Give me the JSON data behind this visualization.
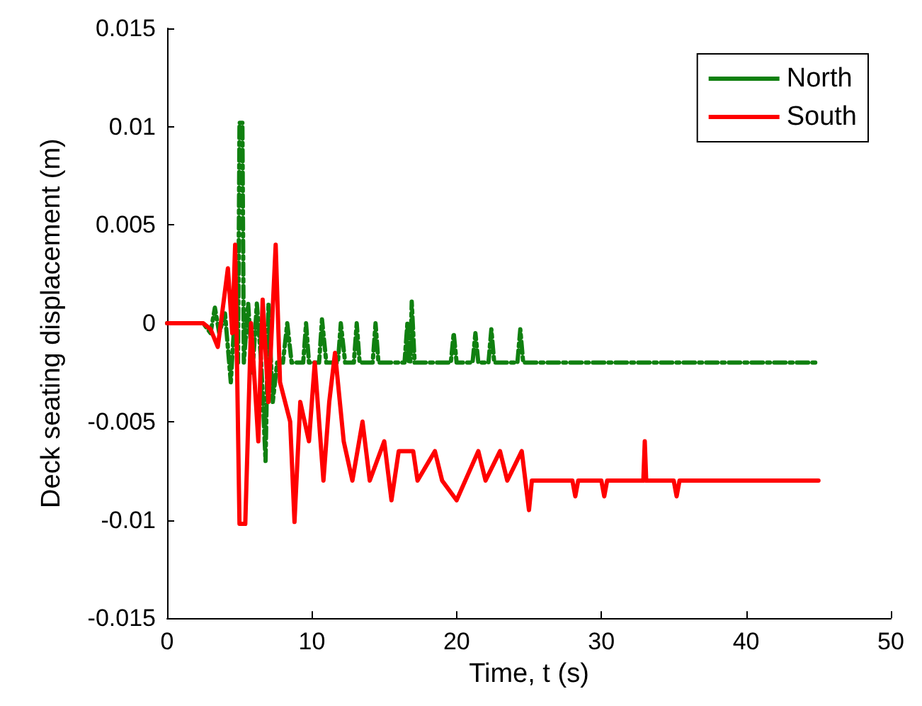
{
  "chart_data": {
    "type": "line",
    "xlabel": "Time, t (s)",
    "ylabel": "Deck seating displacement (m)",
    "xlim": [
      0,
      50
    ],
    "xticks": [
      0,
      10,
      20,
      30,
      40,
      50
    ],
    "ylim": [
      -0.015,
      0.015
    ],
    "yticks": [
      -0.015,
      -0.01,
      -0.005,
      0,
      0.005,
      0.01,
      0.015
    ],
    "grid": false,
    "legend": "top right",
    "marker": "none",
    "series": [
      {
        "name": "North",
        "color": "#108010",
        "line_style": "dashed",
        "x": [
          0,
          2.5,
          3,
          3.3,
          3.6,
          4,
          4.4,
          4.7,
          4.9,
          5,
          5.2,
          5.3,
          5.6,
          5.9,
          6.2,
          6.5,
          6.8,
          7,
          7.3,
          7.6,
          8,
          8.3,
          8.6,
          9.4,
          9.6,
          9.8,
          10.5,
          10.7,
          11,
          11.8,
          12,
          12.3,
          12.9,
          13.1,
          13.3,
          14.2,
          14.4,
          14.6,
          16.4,
          16.6,
          16.7,
          16.8,
          16.9,
          17.1,
          19.6,
          19.8,
          20,
          21.1,
          21.3,
          21.5,
          22.2,
          22.4,
          22.6,
          24.2,
          24.4,
          24.6,
          45
        ],
        "values": [
          0,
          0,
          -0.0005,
          0.0008,
          -0.0005,
          0.0005,
          -0.003,
          0.0008,
          -0.002,
          0.0102,
          0.0102,
          -0.002,
          0.001,
          -0.0025,
          0.001,
          -0.002,
          -0.007,
          0.001,
          -0.004,
          -0.002,
          -0.002,
          0,
          -0.002,
          -0.002,
          0,
          -0.002,
          -0.002,
          0.0002,
          -0.002,
          -0.002,
          0,
          -0.002,
          -0.002,
          0,
          -0.002,
          -0.002,
          0,
          -0.002,
          -0.002,
          0,
          -0.002,
          -0.002,
          0.0011,
          -0.002,
          -0.002,
          -0.0005,
          -0.002,
          -0.002,
          -0.0005,
          -0.002,
          -0.002,
          -0.0003,
          -0.002,
          -0.002,
          -0.0003,
          -0.002,
          -0.002
        ]
      },
      {
        "name": "South",
        "color": "#ff0000",
        "line_style": "solid",
        "x": [
          0,
          2.5,
          3,
          3.5,
          3.8,
          4.2,
          4.5,
          4.7,
          5,
          5.4,
          5.8,
          6.3,
          6.6,
          7,
          7.5,
          7.8,
          8.5,
          8.8,
          9.2,
          9.8,
          10.2,
          10.8,
          11.2,
          11.6,
          12.2,
          12.8,
          13.5,
          14,
          15,
          15.5,
          16,
          17,
          17.3,
          18.5,
          19,
          20,
          21.5,
          22,
          23,
          23.5,
          24.5,
          25,
          25.2,
          26,
          28,
          28.2,
          28.4,
          30,
          30.2,
          30.4,
          32.9,
          33,
          33.1,
          35,
          35.2,
          35.4,
          45
        ],
        "values": [
          0,
          0,
          -0.0003,
          -0.0012,
          0.0005,
          0.0028,
          -0.0005,
          0.004,
          -0.0102,
          -0.0102,
          0,
          -0.006,
          0.0012,
          -0.004,
          0.004,
          -0.003,
          -0.005,
          -0.0101,
          -0.004,
          -0.006,
          -0.002,
          -0.008,
          -0.004,
          -0.0015,
          -0.006,
          -0.008,
          -0.005,
          -0.008,
          -0.006,
          -0.009,
          -0.0065,
          -0.0065,
          -0.008,
          -0.0065,
          -0.008,
          -0.009,
          -0.0065,
          -0.008,
          -0.0065,
          -0.008,
          -0.0065,
          -0.0095,
          -0.008,
          -0.008,
          -0.008,
          -0.0088,
          -0.008,
          -0.008,
          -0.0088,
          -0.008,
          -0.008,
          -0.006,
          -0.008,
          -0.008,
          -0.0088,
          -0.008,
          -0.008
        ]
      }
    ]
  }
}
